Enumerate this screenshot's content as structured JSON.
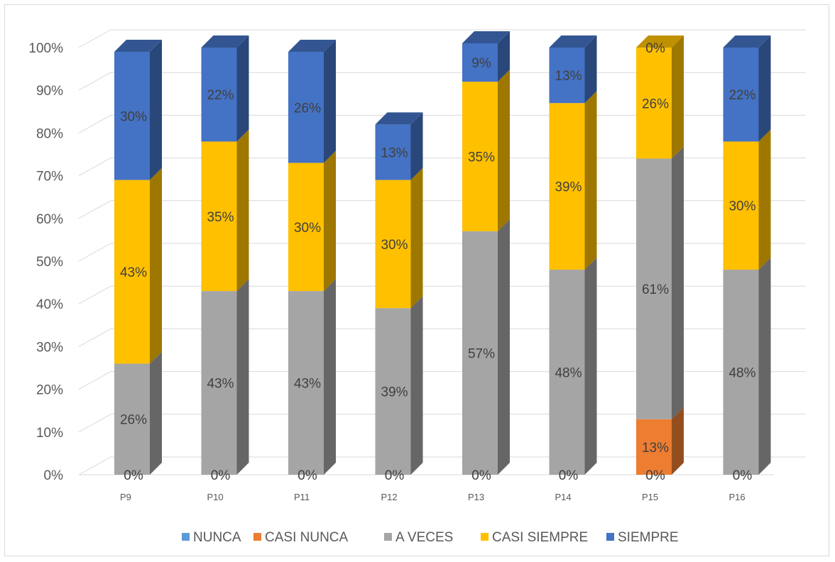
{
  "chart_data": {
    "type": "bar",
    "stacked": true,
    "three_d": true,
    "categories": [
      "P9",
      "P10",
      "P11",
      "P12",
      "P13",
      "P14",
      "P15",
      "P16"
    ],
    "series": [
      {
        "name": "NUNCA",
        "color": "#5B9BD5",
        "values": [
          0,
          0,
          0,
          0,
          0,
          0,
          0,
          0
        ],
        "labels": [
          "0%",
          "0%",
          "0%",
          "0%",
          "0%",
          "0%",
          "0%",
          "0%"
        ]
      },
      {
        "name": "CASI NUNCA",
        "color": "#ED7D31",
        "values": [
          0,
          0,
          0,
          0,
          0,
          0,
          13,
          0
        ],
        "labels": [
          "",
          "",
          "",
          "",
          "",
          "",
          "13%",
          ""
        ]
      },
      {
        "name": "A VECES",
        "color": "#A5A5A5",
        "values": [
          26,
          43,
          43,
          39,
          57,
          48,
          61,
          48
        ],
        "labels": [
          "26%",
          "43%",
          "43%",
          "39%",
          "57%",
          "48%",
          "61%",
          "48%"
        ]
      },
      {
        "name": "CASI SIEMPRE",
        "color": "#FFC000",
        "values": [
          43,
          35,
          30,
          30,
          35,
          39,
          26,
          30
        ],
        "labels": [
          "43%",
          "35%",
          "30%",
          "30%",
          "35%",
          "39%",
          "26%",
          "30%"
        ]
      },
      {
        "name": "SIEMPRE",
        "color": "#4472C4",
        "values": [
          30,
          22,
          26,
          13,
          9,
          13,
          0,
          22
        ],
        "labels": [
          "30%",
          "22%",
          "26%",
          "13%",
          "9%",
          "13%",
          "0%",
          "22%"
        ]
      }
    ],
    "y_ticks": [
      "0%",
      "10%",
      "20%",
      "30%",
      "40%",
      "50%",
      "60%",
      "70%",
      "80%",
      "90%",
      "100%"
    ],
    "ylim": [
      0,
      100
    ],
    "grid": true,
    "legend": "bottom"
  }
}
